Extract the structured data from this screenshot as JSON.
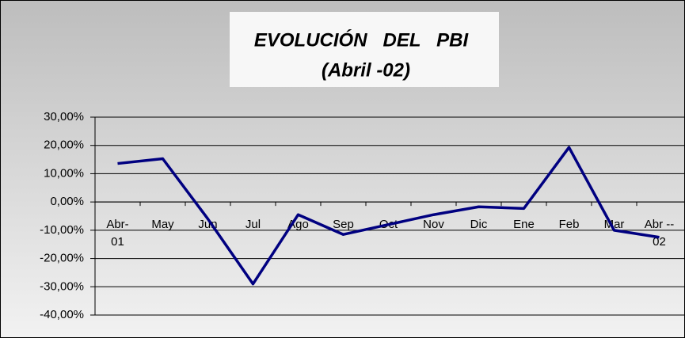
{
  "chart_data": {
    "type": "line",
    "title": "EVOLUCIÓN   DEL   PBI",
    "subtitle": "(Abril -02)",
    "categories": [
      "Abr-\n01",
      "May",
      "Jun",
      "Jul",
      "Ago",
      "Sep",
      "Oct",
      "Nov",
      "Dic",
      "Ene",
      "Feb",
      "Mar",
      "Abr --\n02"
    ],
    "series": [
      {
        "name": "PBI",
        "color": "#000080",
        "values": [
          13.6,
          15.3,
          -6,
          -29,
          -4.5,
          -11.5,
          -8,
          -4.5,
          -1.7,
          -2.3,
          19.3,
          -10,
          -12.5
        ]
      }
    ],
    "ylim": [
      -40,
      30
    ],
    "yticks": [
      {
        "value": -40,
        "label": "-40,00%"
      },
      {
        "value": -30,
        "label": "-30,00%"
      },
      {
        "value": -20,
        "label": "-20,00%"
      },
      {
        "value": -10,
        "label": "-10,00%"
      },
      {
        "value": 0,
        "label": "0,00%"
      },
      {
        "value": 10,
        "label": "10,00%"
      },
      {
        "value": 20,
        "label": "20,00%"
      },
      {
        "value": 30,
        "label": "30,00%"
      }
    ],
    "grid": true
  }
}
